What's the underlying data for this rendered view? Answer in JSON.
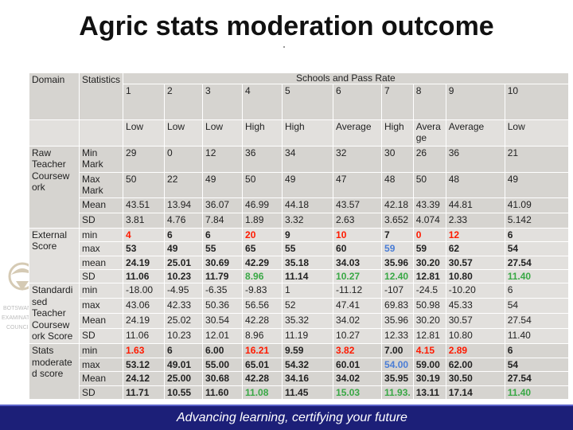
{
  "title": "Agric stats moderation outcome",
  "footer": "Advancing learning, certifying your future",
  "header": {
    "domain": "Domain",
    "statistics": "Statistics",
    "schools_caption": "Schools and Pass Rate",
    "schools": [
      "1",
      "2",
      "3",
      "4",
      "5",
      "6",
      "7",
      "8",
      "9",
      "10"
    ],
    "pass_rates": [
      "Low",
      "Low",
      "Low",
      "High",
      "High",
      "Average",
      "High",
      "Avera ge",
      "Average",
      "Low"
    ]
  },
  "raw": {
    "domain": "Raw Teacher Coursew ork",
    "rows": [
      {
        "stat": "Min Mark",
        "values": [
          "29",
          "0",
          "12",
          "36",
          "34",
          "32",
          "30",
          "26",
          "36",
          "21"
        ]
      },
      {
        "stat": "Max Mark",
        "values": [
          "50",
          "22",
          "49",
          "50",
          "49",
          "47",
          "48",
          "50",
          "48",
          "49"
        ]
      },
      {
        "stat": "Mean",
        "values": [
          "43.51",
          "13.94",
          "36.07",
          "46.99",
          "44.18",
          "43.57",
          "42.18",
          "43.39",
          "44.81",
          "41.09"
        ]
      },
      {
        "stat": "SD",
        "values": [
          "3.81",
          "4.76",
          "7.84",
          "1.89",
          "3.32",
          "2.63",
          "3.652",
          "4.074",
          "2.33",
          "5.142"
        ]
      }
    ]
  },
  "external": {
    "domain": "External Score",
    "rows": [
      {
        "stat": "min",
        "values": [
          "4",
          "6",
          "6",
          "20",
          "9",
          "10",
          "7",
          "0",
          "12",
          "6"
        ]
      },
      {
        "stat": "max",
        "values": [
          "53",
          "49",
          "55",
          "65",
          "55",
          "60",
          "59",
          "59",
          "62",
          "54"
        ]
      },
      {
        "stat": "mean",
        "values": [
          "24.19",
          "25.01",
          "30.69",
          "42.29",
          "35.18",
          "34.03",
          "35.96",
          "30.20",
          "30.57",
          "27.54"
        ]
      },
      {
        "stat": "SD",
        "values": [
          "11.06",
          "10.23",
          "11.79",
          "8.96",
          "11.14",
          "10.27",
          "12.40",
          "12.81",
          "10.80",
          "11.40"
        ]
      }
    ]
  },
  "standardised": {
    "domain": "Standardi sed Teacher Coursew ork Score",
    "rows": [
      {
        "stat": "min",
        "values": [
          "-18.00",
          "-4.95",
          "-6.35",
          "-9.83",
          "1",
          "-11.12",
          "-107",
          "-24.5",
          "-10.20",
          "6"
        ]
      },
      {
        "stat": "max",
        "values": [
          "43.06",
          "42.33",
          "50.36",
          "56.56",
          "52",
          "47.41",
          "69.83",
          "50.98",
          "45.33",
          "54"
        ]
      },
      {
        "stat": "Mean",
        "values": [
          "24.19",
          "25.02",
          "30.54",
          "42.28",
          "35.32",
          "34.02",
          "35.96",
          "30.20",
          "30.57",
          "27.54"
        ]
      },
      {
        "stat": "SD",
        "values": [
          "11.06",
          "10.23",
          "12.01",
          "8.96",
          "11.19",
          "10.27",
          "12.33",
          "12.81",
          "10.80",
          "11.40"
        ]
      }
    ]
  },
  "moderated": {
    "domain": "Stats moderate d score",
    "rows": [
      {
        "stat": "min",
        "values": [
          "1.63",
          "6",
          "6.00",
          "16.21",
          "9.59",
          "3.82",
          "7.00",
          "4.15",
          "2.89",
          "6"
        ]
      },
      {
        "stat": "max",
        "values": [
          "53.12",
          "49.01",
          "55.00",
          "65.01",
          "54.32",
          "60.01",
          "54.00",
          "59.00",
          "62.00",
          "54"
        ]
      },
      {
        "stat": "Mean",
        "values": [
          "24.12",
          "25.00",
          "30.68",
          "42.28",
          "34.16",
          "34.02",
          "35.95",
          "30.19",
          "30.50",
          "27.54"
        ]
      },
      {
        "stat": "SD",
        "values": [
          "11.71",
          "10.55",
          "11.60",
          "11.08",
          "11.45",
          "15.03",
          "11.93.",
          "13.11",
          "17.14",
          "11.40"
        ]
      }
    ]
  },
  "watermark": {
    "text1": "BOTSWANA",
    "text2": "EXAMINATIONS",
    "text3": "COUNCIL"
  },
  "colors": {
    "red": "#ff1a00",
    "blue": "#4a7dd6",
    "green": "#39a845",
    "footer": "#1c1f78"
  }
}
